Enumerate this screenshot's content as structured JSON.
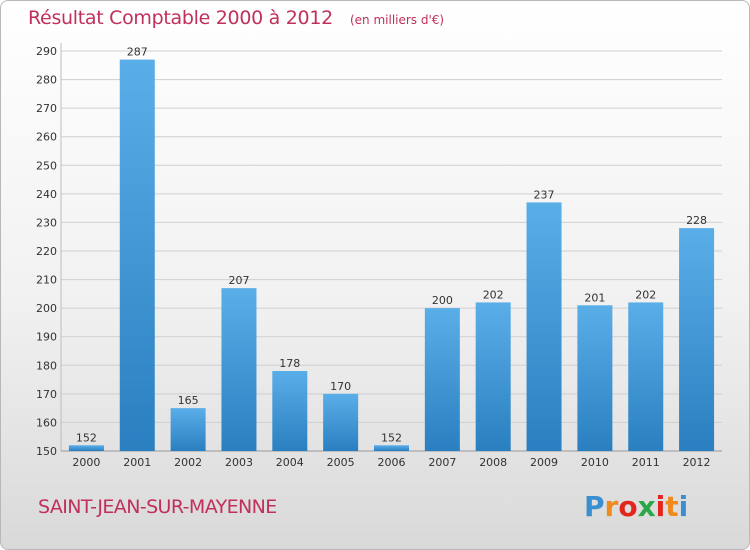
{
  "header": {
    "title": "Résultat Comptable 2000 à 2012",
    "subtitle": "(en milliers d'€)"
  },
  "footer": {
    "commune": "SAINT-JEAN-SUR-MAYENNE",
    "logo_letters": [
      "P",
      "r",
      "o",
      "x",
      "i",
      "t",
      "i"
    ]
  },
  "colors": {
    "title": "#c0305a",
    "bar_top": "#5aaee8",
    "bar_bottom": "#2a7fc0",
    "grid": "#cfcfcf",
    "logo": [
      "#3a8fd0",
      "#f08a1c",
      "#e2261e",
      "#2aa847",
      "#e2261e",
      "#f08a1c",
      "#3a8fd0"
    ]
  },
  "chart_data": {
    "type": "bar",
    "title": "Résultat Comptable 2000 à 2012",
    "categories": [
      "2000",
      "2001",
      "2002",
      "2003",
      "2004",
      "2005",
      "2006",
      "2007",
      "2008",
      "2009",
      "2010",
      "2011",
      "2012"
    ],
    "values": [
      152,
      287,
      165,
      207,
      178,
      170,
      152,
      200,
      202,
      237,
      201,
      202,
      228
    ],
    "ylim": [
      150,
      290
    ],
    "yticks": [
      150,
      160,
      170,
      180,
      190,
      200,
      210,
      220,
      230,
      240,
      250,
      260,
      270,
      280,
      290
    ],
    "grid": true,
    "legend": "none"
  }
}
